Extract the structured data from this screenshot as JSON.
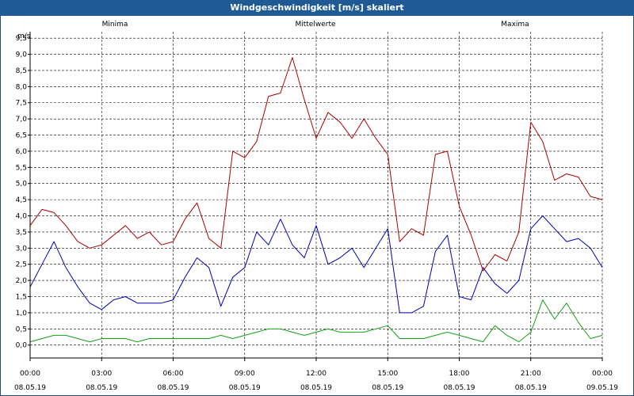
{
  "window": {
    "title": "Windgeschwindigkeit [m/s] skaliert"
  },
  "colors": {
    "title_bar": "#1f5a95",
    "minima": "#14a014",
    "mittelwerte": "#0000b4",
    "maxima": "#aa0000",
    "grid": "#000000"
  },
  "chart_data": {
    "type": "line",
    "title": "Windgeschwindigkeit [m/s] skaliert",
    "ylabel": "m/s",
    "xlabel": "",
    "ylim": [
      -0.4,
      9.7
    ],
    "xlim": [
      "2019-05-08 00:00",
      "2019-05-09 00:00"
    ],
    "grid": true,
    "legend": "top",
    "y_ticks": [
      "0,0",
      "0,5",
      "1,0",
      "1,5",
      "2,0",
      "2,5",
      "3,0",
      "3,5",
      "4,0",
      "4,5",
      "5,0",
      "5,5",
      "6,0",
      "6,5",
      "7,0",
      "7,5",
      "8,0",
      "8,5",
      "9,0",
      "9,5"
    ],
    "x_ticks": [
      {
        "time": "00:00",
        "date": "08.05.19"
      },
      {
        "time": "03:00",
        "date": "08.05.19"
      },
      {
        "time": "06:00",
        "date": "08.05.19"
      },
      {
        "time": "09:00",
        "date": "08.05.19"
      },
      {
        "time": "12:00",
        "date": "08.05.19"
      },
      {
        "time": "15:00",
        "date": "08.05.19"
      },
      {
        "time": "18:00",
        "date": "08.05.19"
      },
      {
        "time": "21:00",
        "date": "08.05.19"
      },
      {
        "time": "00:00",
        "date": "09.05.19"
      }
    ],
    "x": [
      "00:00",
      "00:30",
      "01:00",
      "01:30",
      "02:00",
      "02:30",
      "03:00",
      "03:30",
      "04:00",
      "04:30",
      "05:00",
      "05:30",
      "06:00",
      "06:30",
      "07:00",
      "07:30",
      "08:00",
      "08:30",
      "09:00",
      "09:30",
      "10:00",
      "10:30",
      "11:00",
      "11:30",
      "12:00",
      "12:30",
      "13:00",
      "13:30",
      "14:00",
      "14:30",
      "15:00",
      "15:30",
      "16:00",
      "16:30",
      "17:00",
      "17:30",
      "18:00",
      "18:30",
      "19:00",
      "19:30",
      "20:00",
      "20:30",
      "21:00",
      "21:30",
      "22:00",
      "22:30",
      "23:00",
      "23:30",
      "00:00"
    ],
    "series": [
      {
        "name": "Minima",
        "color": "#14a014",
        "values": [
          0.1,
          0.2,
          0.3,
          0.3,
          0.2,
          0.1,
          0.2,
          0.2,
          0.2,
          0.1,
          0.2,
          0.2,
          0.2,
          0.2,
          0.2,
          0.2,
          0.3,
          0.2,
          0.3,
          0.4,
          0.5,
          0.5,
          0.4,
          0.3,
          0.4,
          0.5,
          0.4,
          0.4,
          0.4,
          0.5,
          0.6,
          0.2,
          0.2,
          0.2,
          0.3,
          0.4,
          0.3,
          0.2,
          0.1,
          0.6,
          0.3,
          0.1,
          0.4,
          1.4,
          0.8,
          1.3,
          0.7,
          0.2,
          0.3
        ]
      },
      {
        "name": "Mittelwerte",
        "color": "#0000b4",
        "values": [
          1.8,
          2.5,
          3.2,
          2.4,
          1.8,
          1.3,
          1.1,
          1.4,
          1.5,
          1.3,
          1.3,
          1.3,
          1.4,
          2.1,
          2.7,
          2.4,
          1.2,
          2.1,
          2.4,
          3.5,
          3.1,
          3.9,
          3.1,
          2.7,
          3.7,
          2.5,
          2.7,
          3.0,
          2.4,
          3.0,
          3.6,
          1.0,
          1.0,
          1.2,
          2.9,
          3.4,
          1.5,
          1.4,
          2.4,
          1.9,
          1.6,
          2.0,
          3.6,
          4.0,
          3.6,
          3.2,
          3.3,
          3.0,
          2.4
        ]
      },
      {
        "name": "Maxima",
        "color": "#aa0000",
        "values": [
          3.7,
          4.2,
          4.1,
          3.7,
          3.2,
          3.0,
          3.1,
          3.4,
          3.7,
          3.3,
          3.5,
          3.1,
          3.2,
          3.9,
          4.4,
          3.3,
          3.0,
          6.0,
          5.8,
          6.3,
          7.7,
          7.8,
          8.9,
          7.6,
          6.4,
          7.2,
          6.9,
          6.4,
          7.0,
          6.4,
          5.9,
          3.2,
          3.6,
          3.4,
          5.9,
          6.0,
          4.3,
          3.4,
          2.3,
          2.8,
          2.6,
          3.5,
          6.9,
          6.3,
          5.1,
          5.3,
          5.2,
          4.6,
          4.5
        ]
      }
    ]
  }
}
